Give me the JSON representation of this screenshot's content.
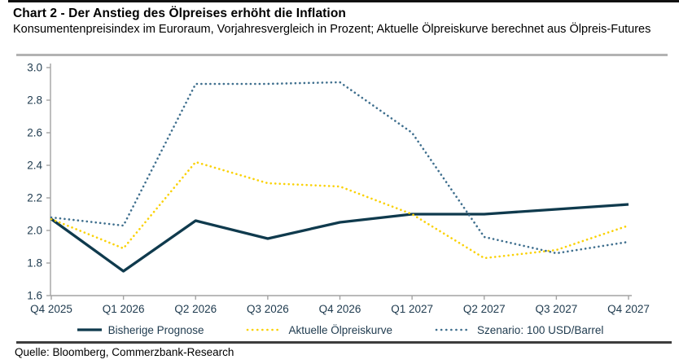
{
  "header": {
    "title": "Chart 2 - Der Anstieg des Ölpreises erhöht die Inflation",
    "subtitle": "Konsumentenpreisindex im Euroraum, Vorjahresvergleich in Prozent; Aktuelle Ölpreiskurve berechnet aus Ölpreis-Futures"
  },
  "footer": {
    "source": "Quelle: Bloomberg, Commerzbank-Research"
  },
  "colors": {
    "accent_bar": "#111111",
    "header_divider": "#b3b3b3",
    "footer_divider": "#3d3d3d",
    "axis": "#a3a3a3",
    "tick_text": "#1e3a4e",
    "series_prognose": "#0f3a4d",
    "series_oelpreiskurve": "#fad105",
    "series_szenario": "#3f6f8e"
  },
  "chart_data": {
    "type": "line",
    "title": "Chart 2 - Der Anstieg des Ölpreises erhöht die Inflation",
    "subtitle": "Konsumentenpreisindex im Euroraum, Vorjahresvergleich in Prozent; Aktuelle Ölpreiskurve berechnet aus Ölpreis-Futures",
    "categories": [
      "Q4 2025",
      "Q1 2026",
      "Q2 2026",
      "Q3 2026",
      "Q4 2026",
      "Q1 2027",
      "Q2 2027",
      "Q3 2027",
      "Q4 2027"
    ],
    "series": [
      {
        "name": "Bisherige Prognose",
        "style": "solid",
        "color": "#0f3a4d",
        "values": [
          2.07,
          1.75,
          2.06,
          1.95,
          2.05,
          2.1,
          2.1,
          2.13,
          2.16
        ]
      },
      {
        "name": "Aktuelle Ölpreiskurve",
        "style": "dotted",
        "color": "#fad105",
        "values": [
          2.07,
          1.89,
          2.42,
          2.29,
          2.27,
          2.1,
          1.83,
          1.88,
          2.03
        ]
      },
      {
        "name": "Szenario: 100 USD/Barrel",
        "style": "dotted",
        "color": "#3f6f8e",
        "values": [
          2.08,
          2.03,
          2.9,
          2.9,
          2.91,
          2.6,
          1.96,
          1.86,
          1.93
        ]
      }
    ],
    "xlabel": "",
    "ylabel": "",
    "ylim": [
      1.6,
      3.0
    ],
    "yticks": [
      1.6,
      1.8,
      2.0,
      2.2,
      2.4,
      2.6,
      2.8,
      3.0
    ],
    "grid": false,
    "legend_position": "bottom"
  }
}
